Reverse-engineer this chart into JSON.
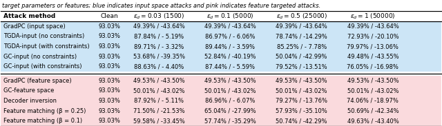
{
  "caption": "target parameters or features; blue indicates input space attacks and pink indicates feature targeted attacks.",
  "col_headers": [
    "Attack method",
    "Clean",
    "$\\epsilon_d = 0.03$ (1500)",
    "$\\epsilon_d = 0.1$ (5000)",
    "$\\epsilon_d = 0.5$ (25000)",
    "$\\epsilon_d = 1$ (50000)"
  ],
  "rows_blue": [
    [
      "GradPC (input space)",
      "93.03%",
      "49.39% / -43.64%",
      "49.39% / -43.64%",
      "49.39% / -43.64%",
      "49.39% / -43.64%"
    ],
    [
      "TGDA-input (no constraints)",
      "93.03%",
      "87.84% / - 5.19%",
      "86.97% / - 6.06%",
      "78.74% / -14.29%",
      "72.93% / -20.10%"
    ],
    [
      "TGDA-input (with constraints)",
      "93.03%",
      "89.71% / - 3.32%",
      "89.44% / - 3.59%",
      "85.25% / - 7.78%",
      "79.97% / -13.06%"
    ],
    [
      "GC-input (no constraints)",
      "93.03%",
      "53.68% / -39.35%",
      "52.84% / -40.19%",
      "50.04% / -42.99%",
      "49.48% / -43.55%"
    ],
    [
      "GC-input (with constraints)",
      "93.03%",
      "88.63% / - 4.40%",
      "87.44% / - 5.59%",
      "79.52% / -13.51%",
      "76.05% / -16.98%"
    ]
  ],
  "rows_pink": [
    [
      "GradPC (feature space)",
      "93.03%",
      "49.53% / -43.50%",
      "49.53% / -43.50%",
      "49.53% / -43.50%",
      "49.53% / -43.50%"
    ],
    [
      "GC-feature space",
      "93.03%",
      "50.01% / -43.02%",
      "50.01% / -43.02%",
      "50.01% / -43.02%",
      "50.01% / -43.02%"
    ],
    [
      "Decoder inversion",
      "93.03%",
      "87.92% / - 5.11%",
      "86.96% / - 6.07%",
      "79.27% / -13.76%",
      "74.06% / -18.97%"
    ],
    [
      "Feature matching (β = 0.25)",
      "93.03%",
      "71.50% / -21.53%",
      "65.04% / -27.99%",
      "57.93% / -35.10%",
      "50.69% / -42.34%"
    ],
    [
      "Feature matching (β = 0.1)",
      "93.03%",
      "59.58% / -33.45%",
      "57.74% / -35.29%",
      "50.74% / -42.29%",
      "49.63% / -43.40%"
    ]
  ],
  "color_blue": "#cce5f6",
  "color_pink": "#fadadd",
  "color_white": "#ffffff",
  "fig_width": 6.4,
  "fig_height": 1.83,
  "caption_fontsize": 6.0,
  "header_fontsize": 6.5,
  "cell_fontsize": 6.0
}
